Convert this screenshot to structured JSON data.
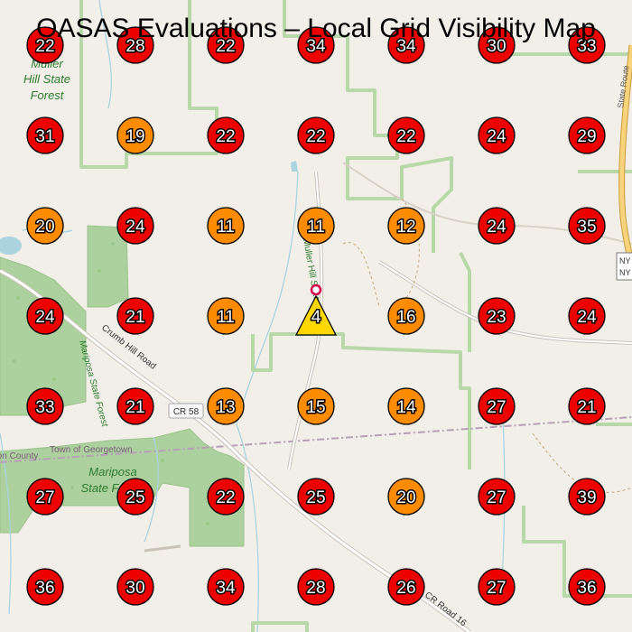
{
  "title": "OASAS Evaluations – Local Grid Visibility Map",
  "map_labels": {
    "forest_1": [
      "Muller",
      "Hill State",
      "Forest"
    ],
    "forest_2": [
      "Mariposa",
      "State Forest"
    ],
    "forest_2_vertical": "Mariposa State Forest",
    "road_crumb": "Crumb Hill Road",
    "road_cr58": "CR 58",
    "road_muller": "Muller Hill State",
    "road_cr16": "CR Road 16",
    "road_state": "State Route",
    "county": "Madison County",
    "town": "Town of Georgetown",
    "ny_1": "NY",
    "ny_2": "NY"
  },
  "grid": {
    "rows": [
      [
        22,
        28,
        22,
        34,
        34,
        30,
        33
      ],
      [
        31,
        19,
        22,
        22,
        22,
        24,
        29
      ],
      [
        20,
        24,
        11,
        11,
        12,
        24,
        35
      ],
      [
        24,
        21,
        11,
        4,
        16,
        23,
        24
      ],
      [
        33,
        21,
        13,
        15,
        14,
        27,
        21
      ],
      [
        27,
        25,
        22,
        25,
        20,
        27,
        39
      ],
      [
        36,
        30,
        34,
        28,
        26,
        27,
        36
      ]
    ],
    "center_marker": {
      "row": 3,
      "col": 3,
      "shape": "triangle",
      "color": "#ffd700"
    },
    "legend_colors": {
      "high": "#ee0000",
      "medium": "#ff8c00",
      "low": "#ffd700"
    },
    "thresholds": {
      "orange_below": 21,
      "yellow_below": 10
    }
  },
  "location_pin": {
    "icon": "map-pin-icon",
    "color": "#d4004c"
  }
}
